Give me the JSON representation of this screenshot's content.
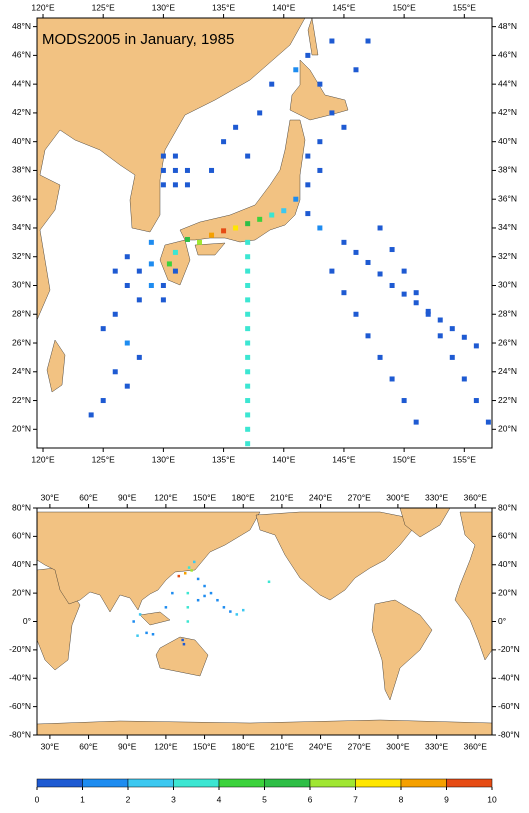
{
  "title": "MODS2005 in January, 1985",
  "top_map": {
    "lon_range": [
      119.5,
      157.3
    ],
    "lat_range": [
      18.7,
      48.6
    ],
    "lon_ticks": [
      {
        "value": 120,
        "label": "120°E"
      },
      {
        "value": 125,
        "label": "125°E"
      },
      {
        "value": 130,
        "label": "130°E"
      },
      {
        "value": 135,
        "label": "135°E"
      },
      {
        "value": 140,
        "label": "140°E"
      },
      {
        "value": 145,
        "label": "145°E"
      },
      {
        "value": 150,
        "label": "150°E"
      },
      {
        "value": 155,
        "label": "155°E"
      }
    ],
    "lat_ticks": [
      {
        "value": 20,
        "label": "20°N"
      },
      {
        "value": 22,
        "label": "22°N"
      },
      {
        "value": 24,
        "label": "24°N"
      },
      {
        "value": 26,
        "label": "26°N"
      },
      {
        "value": 28,
        "label": "28°N"
      },
      {
        "value": 30,
        "label": "30°N"
      },
      {
        "value": 32,
        "label": "32°N"
      },
      {
        "value": 34,
        "label": "34°N"
      },
      {
        "value": 36,
        "label": "36°N"
      },
      {
        "value": 38,
        "label": "38°N"
      },
      {
        "value": 40,
        "label": "40°N"
      },
      {
        "value": 42,
        "label": "42°N"
      },
      {
        "value": 44,
        "label": "44°N"
      },
      {
        "value": 46,
        "label": "46°N"
      },
      {
        "value": 48,
        "label": "48°N"
      }
    ],
    "cells": [
      [
        145,
        33,
        0.5
      ],
      [
        146,
        32.3,
        0.5
      ],
      [
        147,
        31.6,
        0.5
      ],
      [
        148,
        30.8,
        0.5
      ],
      [
        149,
        30,
        0.5
      ],
      [
        150,
        29.4,
        0.5
      ],
      [
        151,
        28.8,
        0.5
      ],
      [
        152,
        28.2,
        0.5
      ],
      [
        153,
        27.6,
        0.5
      ],
      [
        154,
        27,
        0.5
      ],
      [
        155,
        26.4,
        0.5
      ],
      [
        156,
        25.8,
        0.5
      ],
      [
        144,
        31,
        0.5
      ],
      [
        145,
        29.5,
        0.5
      ],
      [
        146,
        28,
        0.5
      ],
      [
        147,
        26.5,
        0.5
      ],
      [
        148,
        25,
        0.5
      ],
      [
        149,
        23.5,
        0.5
      ],
      [
        150,
        22,
        0.5
      ],
      [
        151,
        20.5,
        0.5
      ],
      [
        148,
        34,
        0.5
      ],
      [
        149,
        32.5,
        0.5
      ],
      [
        150,
        31,
        0.5
      ],
      [
        151,
        29.5,
        0.5
      ],
      [
        152,
        28,
        0.5
      ],
      [
        153,
        26.5,
        0.5
      ],
      [
        154,
        25,
        0.5
      ],
      [
        155,
        23.5,
        0.5
      ],
      [
        156,
        22,
        0.5
      ],
      [
        157,
        20.5,
        0.5
      ],
      [
        137,
        33,
        3.5
      ],
      [
        137,
        32,
        3.5
      ],
      [
        137,
        31,
        3.5
      ],
      [
        137,
        30,
        3.5
      ],
      [
        137,
        29,
        3.5
      ],
      [
        137,
        28,
        3.5
      ],
      [
        137,
        27,
        3.5
      ],
      [
        137,
        26,
        3.5
      ],
      [
        137,
        25,
        3.5
      ],
      [
        137,
        24,
        3.5
      ],
      [
        137,
        23,
        3.5
      ],
      [
        137,
        22,
        3.5
      ],
      [
        137,
        21,
        3.5
      ],
      [
        137,
        20,
        3.5
      ],
      [
        137,
        19,
        3.5
      ],
      [
        132,
        33.2,
        5.5
      ],
      [
        133,
        33,
        6.5
      ],
      [
        134,
        33.5,
        8.5
      ],
      [
        135,
        33.8,
        9.5
      ],
      [
        136,
        34,
        7.5
      ],
      [
        137,
        34.3,
        5.5
      ],
      [
        138,
        34.6,
        4.5
      ],
      [
        139,
        34.9,
        3.5
      ],
      [
        140,
        35.2,
        2.5
      ],
      [
        130.5,
        31.5,
        4.5
      ],
      [
        131,
        32.3,
        3.5
      ],
      [
        126,
        31,
        0.5
      ],
      [
        127,
        30,
        0.5
      ],
      [
        128,
        29,
        0.5
      ],
      [
        129,
        30,
        1.5
      ],
      [
        128,
        31,
        0.5
      ],
      [
        127,
        32,
        0.5
      ],
      [
        129,
        33,
        1.5
      ],
      [
        130,
        29,
        0.5
      ],
      [
        126,
        28,
        0.5
      ],
      [
        125,
        27,
        0.5
      ],
      [
        127,
        26,
        1.5
      ],
      [
        128,
        25,
        0.5
      ],
      [
        126,
        24,
        0.5
      ],
      [
        127,
        23,
        0.5
      ],
      [
        125,
        22,
        0.5
      ],
      [
        124,
        21,
        0.5
      ],
      [
        130,
        30,
        0.5
      ],
      [
        131,
        31,
        0.5
      ],
      [
        129,
        31.5,
        1.5
      ],
      [
        130,
        37,
        0.5
      ],
      [
        131,
        37,
        0.5
      ],
      [
        132,
        37,
        0.5
      ],
      [
        130,
        38,
        0.5
      ],
      [
        131,
        38,
        0.5
      ],
      [
        132,
        38,
        0.5
      ],
      [
        130,
        39,
        0.5
      ],
      [
        131,
        39,
        0.5
      ],
      [
        134,
        38,
        0.5
      ],
      [
        135,
        40,
        0.5
      ],
      [
        136,
        41,
        0.5
      ],
      [
        137,
        39,
        0.5
      ],
      [
        138,
        42,
        0.5
      ],
      [
        139,
        44,
        0.5
      ],
      [
        141,
        45,
        1.5
      ],
      [
        142,
        46,
        0.5
      ],
      [
        143,
        44,
        0.5
      ],
      [
        144,
        42,
        0.5
      ],
      [
        145,
        41,
        0.5
      ],
      [
        143,
        40,
        0.5
      ],
      [
        142,
        39,
        0.5
      ],
      [
        142,
        37,
        0.5
      ],
      [
        141,
        36,
        1.5
      ],
      [
        143,
        38,
        0.5
      ],
      [
        142,
        35,
        0.5
      ],
      [
        143,
        34,
        1.5
      ],
      [
        146,
        45,
        0.5
      ],
      [
        147,
        47,
        0.5
      ],
      [
        144,
        47,
        0.5
      ]
    ]
  },
  "bottom_map": {
    "lon_range": [
      20,
      373
    ],
    "lat_range": [
      -80,
      80
    ],
    "lon_ticks": [
      {
        "value": 30,
        "label": "30°E"
      },
      {
        "value": 60,
        "label": "60°E"
      },
      {
        "value": 90,
        "label": "90°E"
      },
      {
        "value": 120,
        "label": "120°E"
      },
      {
        "value": 150,
        "label": "150°E"
      },
      {
        "value": 180,
        "label": "180°E"
      },
      {
        "value": 210,
        "label": "210°E"
      },
      {
        "value": 240,
        "label": "240°E"
      },
      {
        "value": 270,
        "label": "270°E"
      },
      {
        "value": 300,
        "label": "300°E"
      },
      {
        "value": 330,
        "label": "330°E"
      },
      {
        "value": 360,
        "label": "360°E"
      }
    ],
    "lat_ticks": [
      {
        "value": -80,
        "label": "-80°N"
      },
      {
        "value": -60,
        "label": "-60°N"
      },
      {
        "value": -40,
        "label": "-40°N"
      },
      {
        "value": -20,
        "label": "-20°N"
      },
      {
        "value": 0,
        "label": "0°"
      },
      {
        "value": 20,
        "label": "20°N"
      },
      {
        "value": 40,
        "label": "40°N"
      },
      {
        "value": 60,
        "label": "60°N"
      },
      {
        "value": 80,
        "label": "80°N"
      }
    ],
    "cells": [
      [
        130,
        32,
        9.5
      ],
      [
        135,
        34,
        8.5
      ],
      [
        140,
        36,
        6.5
      ],
      [
        138,
        38,
        3.5
      ],
      [
        142,
        42,
        2.5
      ],
      [
        145,
        30,
        1.5
      ],
      [
        150,
        25,
        1.5
      ],
      [
        155,
        20,
        1.5
      ],
      [
        160,
        15,
        1.5
      ],
      [
        165,
        10,
        1.5
      ],
      [
        170,
        7,
        1.5
      ],
      [
        175,
        5,
        2.5
      ],
      [
        137,
        20,
        3.5
      ],
      [
        137,
        10,
        3.5
      ],
      [
        137,
        0,
        3.5
      ],
      [
        98,
        -10,
        2.5
      ],
      [
        105,
        -8,
        1.5
      ],
      [
        110,
        -9,
        1.5
      ],
      [
        100,
        5,
        2.5
      ],
      [
        95,
        0,
        1.5
      ],
      [
        120,
        10,
        1.5
      ],
      [
        125,
        20,
        1.5
      ],
      [
        145,
        15,
        1.5
      ],
      [
        150,
        18,
        1.5
      ],
      [
        180,
        8,
        2.5
      ],
      [
        200,
        28,
        3.5
      ],
      [
        133,
        -13,
        0.5
      ],
      [
        134,
        -16,
        0.5
      ]
    ]
  },
  "colorbar": {
    "ticks": [
      0,
      1,
      2,
      3,
      4,
      5,
      6,
      7,
      8,
      9,
      10
    ],
    "colors": [
      "#1e5ad2",
      "#1e8cf0",
      "#3cc8f0",
      "#3ce6d2",
      "#3cd23c",
      "#2ebe46",
      "#a0e632",
      "#ffe600",
      "#f5a000",
      "#e64b14"
    ]
  }
}
